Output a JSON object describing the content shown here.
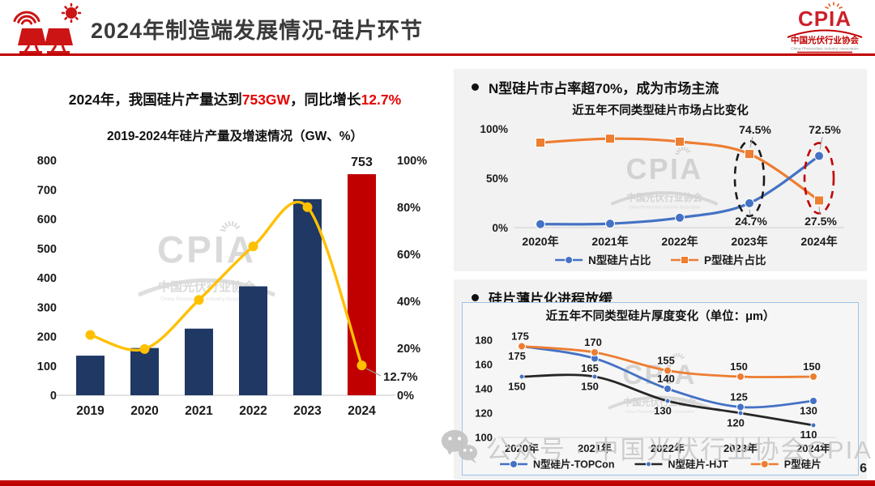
{
  "slide": {
    "page_number": "6"
  },
  "header": {
    "title": "2024年制造端发展情况-硅片环节",
    "logo": {
      "text": "CPIA",
      "cn": "中国光伏行业协会",
      "en": "China Photovoltaic Industry Association"
    }
  },
  "left_panel": {
    "headline_part1": "2024年，我国硅片产量达到",
    "headline_value": "753GW",
    "headline_part2": "，同比增长",
    "headline_growth": "12.7%"
  },
  "right_top_panel": {
    "heading": "N型硅片市占率超70%，成为市场主流"
  },
  "right_bottom_panel": {
    "heading": "硅片薄片化进程放缓"
  },
  "watermarks": {
    "cpia_text": "CPIA",
    "cpia_cn": "中国光伏行业协会",
    "cpia_en": "China Photovoltaic Industry Association",
    "wechat_text": "公众号 · 中国光伏行业协会CPIA"
  },
  "colors": {
    "accent_red": "#c00000",
    "bar_navy": "#1f3864",
    "line_yellow": "#ffc000",
    "line_blue": "#4472c4",
    "line_orange": "#ed7d31",
    "line_black": "#262626"
  },
  "chart_data": [
    {
      "id": "wafer_production",
      "type": "bar",
      "title": "2019-2024年硅片产量及增速情况（GW、%）",
      "categories": [
        "2019",
        "2020",
        "2021",
        "2022",
        "2023",
        "2024"
      ],
      "series": [
        {
          "name": "硅片产量(GW)",
          "type": "bar",
          "values": [
            135,
            161,
            227,
            371,
            668,
            753
          ]
        },
        {
          "name": "同比增速(%)",
          "type": "line",
          "axis": "right",
          "values": [
            25.7,
            19.7,
            40.6,
            63.4,
            80.1,
            12.7
          ]
        }
      ],
      "bar_colors": [
        "#1f3864",
        "#1f3864",
        "#1f3864",
        "#1f3864",
        "#1f3864",
        "#c00000"
      ],
      "line_color": "#ffc000",
      "ylim_left": [
        0,
        800
      ],
      "ytick_step_left": 100,
      "ylim_right": [
        0,
        100
      ],
      "yticks_right": [
        "0%",
        "20%",
        "40%",
        "60%",
        "80%",
        "100%"
      ],
      "bar_label": "753",
      "line_label": "12.7%",
      "grid": false,
      "legend": "none"
    },
    {
      "id": "market_share",
      "type": "line",
      "title": "近五年不同类型硅片市场占比变化",
      "categories": [
        "2020年",
        "2021年",
        "2022年",
        "2023年",
        "2024年"
      ],
      "series": [
        {
          "name": "N型硅片占比",
          "color": "#4472c4",
          "marker": "circle",
          "values": [
            3.5,
            4,
            10,
            24.7,
            72.5
          ]
        },
        {
          "name": "P型硅片占比",
          "color": "#ed7d31",
          "marker": "square",
          "values": [
            86,
            90,
            87,
            74.5,
            27.5
          ]
        }
      ],
      "ylim": [
        0,
        100
      ],
      "yticks": [
        {
          "v": 0,
          "label": "0%"
        },
        {
          "v": 50,
          "label": "50%"
        },
        {
          "v": 100,
          "label": "100%"
        }
      ],
      "annotations": [
        {
          "si": 1,
          "xi": 3,
          "text": "74.5%",
          "pos": "above"
        },
        {
          "si": 0,
          "xi": 3,
          "text": "24.7%",
          "pos": "below"
        },
        {
          "si": 0,
          "xi": 4,
          "text": "72.5%",
          "pos": "above"
        },
        {
          "si": 1,
          "xi": 4,
          "text": "27.5%",
          "pos": "below"
        }
      ],
      "ellipses": [
        {
          "xi": 3,
          "color": "#1a1a1a"
        },
        {
          "xi": 4,
          "color": "#c00000"
        }
      ],
      "grid": false,
      "legend": "bottom"
    },
    {
      "id": "wafer_thickness",
      "type": "line",
      "title": "近五年不同类型硅片厚度变化（单位：μm）",
      "categories": [
        "2020年",
        "2021年",
        "2022年",
        "2023年",
        "2024年"
      ],
      "series": [
        {
          "name": "N型硅片-TOPCon",
          "color": "#4472c4",
          "marker": "circle",
          "values": [
            175,
            165,
            140,
            125,
            130
          ],
          "label_pos": [
            "below",
            "below",
            "above",
            "above",
            "below"
          ]
        },
        {
          "name": "N型硅片-HJT",
          "color": "#262626",
          "marker": "dot",
          "values": [
            150,
            150,
            130,
            120,
            110
          ],
          "label_pos": [
            "below",
            "below",
            "below",
            "below",
            "below"
          ]
        },
        {
          "name": "P型硅片",
          "color": "#ed7d31",
          "marker": "circle",
          "values": [
            175,
            170,
            155,
            150,
            150
          ],
          "label_pos": [
            "above",
            "above",
            "above",
            "above",
            "above"
          ]
        }
      ],
      "ylim": [
        100,
        180
      ],
      "ytick_step": 20,
      "grid": false,
      "legend": "bottom"
    }
  ]
}
